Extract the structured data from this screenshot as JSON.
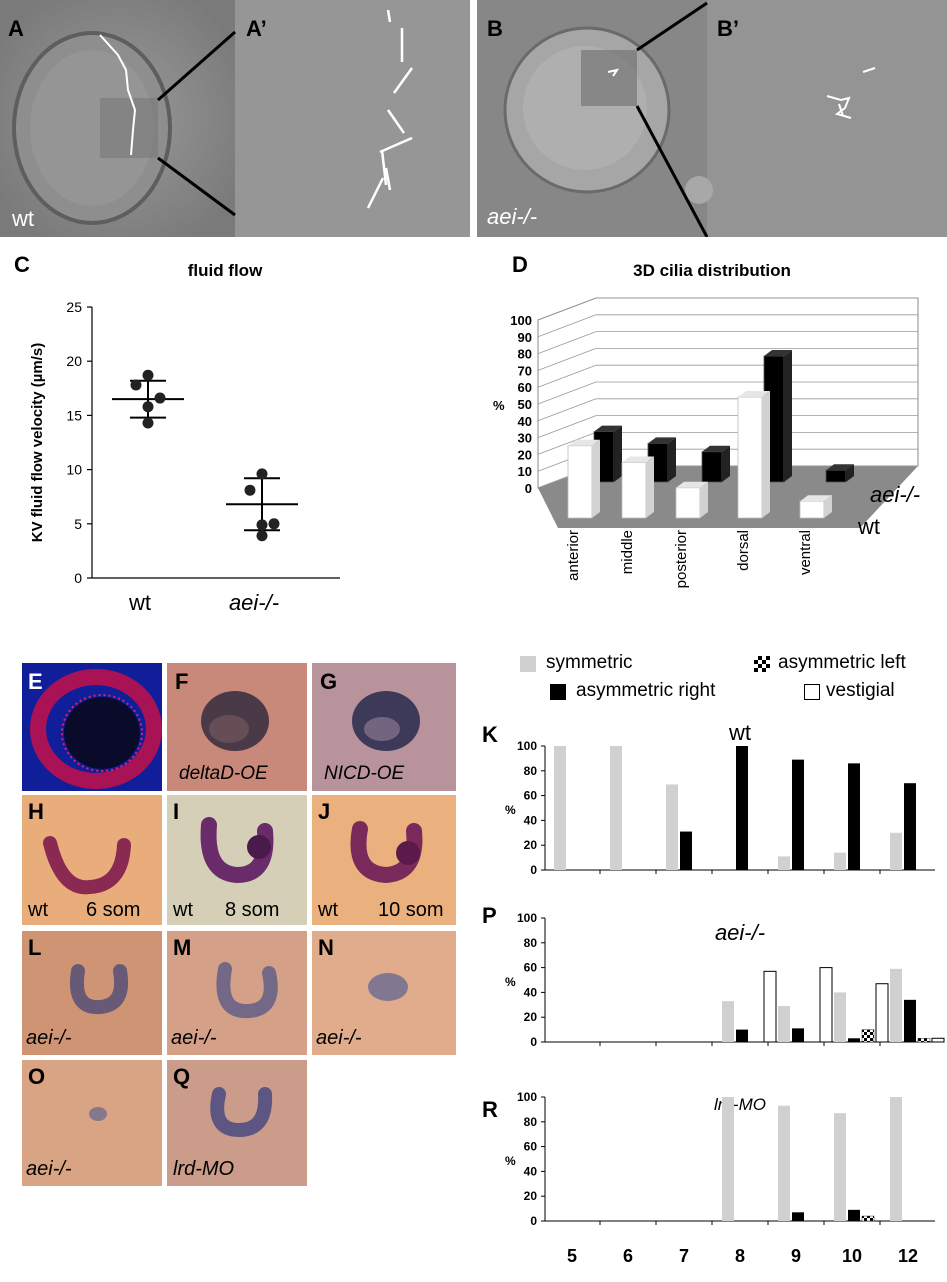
{
  "panels": {
    "A": {
      "letter": "A",
      "label": "wt"
    },
    "A_prime": {
      "letter": "A’"
    },
    "B": {
      "letter": "B",
      "label": "aei-/-"
    },
    "B_prime": {
      "letter": "B’"
    },
    "C": {
      "letter": "C"
    },
    "D": {
      "letter": "D"
    },
    "E": {
      "letter": "E"
    },
    "F": {
      "letter": "F",
      "label": "deltaD-OE"
    },
    "G": {
      "letter": "G",
      "label": "NICD-OE"
    },
    "H": {
      "letter": "H",
      "label_left": "wt",
      "label_right": "6 som"
    },
    "I": {
      "letter": "I",
      "label_left": "wt",
      "label_right": "8 som"
    },
    "J": {
      "letter": "J",
      "label_left": "wt",
      "label_right": "10 som"
    },
    "L": {
      "letter": "L",
      "label": "aei-/-"
    },
    "M": {
      "letter": "M",
      "label": "aei-/-"
    },
    "N": {
      "letter": "N",
      "label": "aei-/-"
    },
    "O": {
      "letter": "O",
      "label": "aei-/-"
    },
    "Q": {
      "letter": "Q",
      "label": "lrd-MO"
    },
    "K": {
      "letter": "K"
    },
    "P": {
      "letter": "P"
    },
    "R": {
      "letter": "R"
    }
  },
  "colors": {
    "symmetric": "#d0d0d0",
    "asymmetric_right": "#000000",
    "vestigial": "#ffffff",
    "orange_bg": "#e8ad7a",
    "micrograph_grey": "#8a8a8a"
  },
  "legend": {
    "symmetric": "symmetric",
    "asymmetric_left": "asymmetric left",
    "asymmetric_right": "asymmetric right",
    "vestigial": "vestigial"
  },
  "chart_data": [
    {
      "id": "C",
      "type": "scatter",
      "title": "fluid flow",
      "ylabel": "KV fluid flow velocity (µm/s)",
      "categories": [
        "wt",
        "aei-/-"
      ],
      "ylim": [
        0,
        25
      ],
      "yticks": [
        "0",
        "5",
        "10",
        "15",
        "20",
        "25"
      ],
      "series": [
        {
          "name": "wt",
          "points": [
            18.7,
            17.8,
            16.6,
            15.8,
            14.3
          ],
          "mean": 16.5,
          "sd_upper": 18.2,
          "sd_lower": 14.8
        },
        {
          "name": "aei-/-",
          "points": [
            9.6,
            8.1,
            5.0,
            4.9,
            3.9
          ],
          "mean": 6.8,
          "sd_upper": 9.2,
          "sd_lower": 4.4
        }
      ]
    },
    {
      "id": "D",
      "type": "bar",
      "title": "3D cilia distribution",
      "ylabel": "%",
      "ylim": [
        0,
        100
      ],
      "yticks": [
        "0",
        "10",
        "20",
        "30",
        "40",
        "50",
        "60",
        "70",
        "80",
        "90",
        "100"
      ],
      "categories": [
        "anterior",
        "middle",
        "posterior",
        "dorsal",
        "ventral"
      ],
      "series": [
        {
          "name": "wt",
          "values": [
            43,
            33,
            18,
            72,
            10
          ]
        },
        {
          "name": "aei-/-",
          "values": [
            30,
            23,
            18,
            75,
            7
          ]
        }
      ]
    },
    {
      "id": "K",
      "type": "bar",
      "title": "wt",
      "ylabel": "%",
      "ylim": [
        0,
        100
      ],
      "yticks": [
        "0",
        "20",
        "40",
        "60",
        "80",
        "100"
      ],
      "categories": [
        "5",
        "6",
        "7",
        "8",
        "9",
        "10",
        "12"
      ],
      "series": [
        {
          "name": "symmetric",
          "values": [
            100,
            100,
            69,
            0,
            11,
            14,
            30
          ]
        },
        {
          "name": "asymmetric right",
          "values": [
            0,
            0,
            31,
            100,
            89,
            86,
            70
          ]
        },
        {
          "name": "asymmetric left",
          "values": [
            0,
            0,
            0,
            0,
            0,
            0,
            0
          ]
        },
        {
          "name": "vestigial",
          "values": [
            0,
            0,
            0,
            0,
            0,
            0,
            0
          ]
        }
      ]
    },
    {
      "id": "P",
      "type": "bar",
      "title": "aei-/-",
      "ylabel": "%",
      "ylim": [
        0,
        100
      ],
      "yticks": [
        "0",
        "20",
        "40",
        "60",
        "80",
        "100"
      ],
      "categories": [
        "5",
        "6",
        "7",
        "8",
        "9",
        "10",
        "12"
      ],
      "series": [
        {
          "name": "symmetric",
          "values": [
            0,
            0,
            0,
            33,
            29,
            40,
            59
          ]
        },
        {
          "name": "asymmetric right",
          "values": [
            0,
            0,
            0,
            10,
            11,
            3,
            34
          ]
        },
        {
          "name": "asymmetric left",
          "values": [
            0,
            0,
            0,
            0,
            0,
            10,
            3
          ]
        },
        {
          "name": "vestigial",
          "values": [
            0,
            0,
            0,
            57,
            60,
            47,
            3
          ]
        }
      ]
    },
    {
      "id": "R",
      "type": "bar",
      "title": "lrd-MO",
      "ylabel": "%",
      "ylim": [
        0,
        100
      ],
      "yticks": [
        "0",
        "20",
        "40",
        "60",
        "80",
        "100"
      ],
      "categories": [
        "5",
        "6",
        "7",
        "8",
        "9",
        "10",
        "12"
      ],
      "series": [
        {
          "name": "symmetric",
          "values": [
            0,
            0,
            0,
            100,
            93,
            87,
            100
          ]
        },
        {
          "name": "asymmetric right",
          "values": [
            0,
            0,
            0,
            0,
            7,
            9,
            0
          ]
        },
        {
          "name": "asymmetric left",
          "values": [
            0,
            0,
            0,
            0,
            0,
            4,
            0
          ]
        },
        {
          "name": "vestigial",
          "values": [
            0,
            0,
            0,
            0,
            0,
            0,
            0
          ]
        }
      ]
    }
  ]
}
